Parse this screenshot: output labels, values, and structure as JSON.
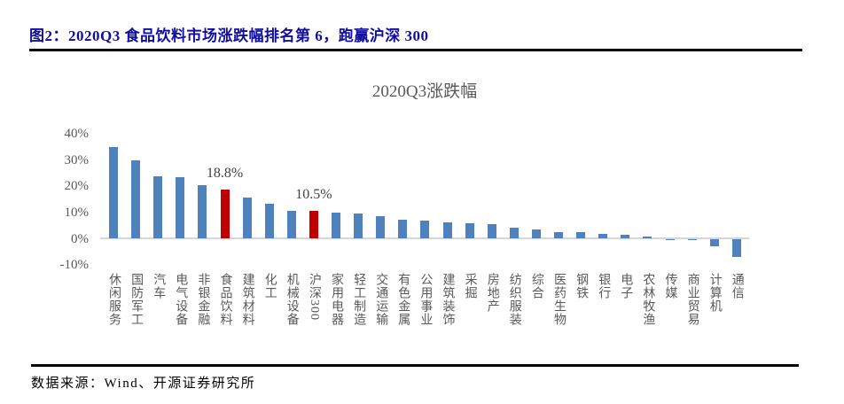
{
  "figure": {
    "caption": "图2：2020Q3 食品饮料市场涨跌幅排名第 6，跑赢沪深 300",
    "caption_color": "#100DA0",
    "source": "数据来源：Wind、开源证券研究所"
  },
  "chart_data": {
    "type": "bar",
    "title": "2020Q3涨跌幅",
    "categories": [
      "休闲服务",
      "国防军工",
      "汽车",
      "电气设备",
      "非银金融",
      "食品饮料",
      "建筑材料",
      "化工",
      "机械设备",
      "沪深300",
      "家用电器",
      "轻工制造",
      "交通运输",
      "有色金属",
      "公用事业",
      "建筑装饰",
      "采掘",
      "房地产",
      "纺织服装",
      "综合",
      "医药生物",
      "钢铁",
      "银行",
      "电子",
      "农林牧渔",
      "传媒",
      "商业贸易",
      "计算机",
      "通信"
    ],
    "values": [
      35.0,
      30.0,
      24.0,
      23.5,
      20.5,
      18.8,
      15.7,
      13.3,
      10.8,
      10.5,
      10.0,
      9.6,
      8.7,
      7.1,
      7.0,
      6.4,
      6.0,
      5.5,
      4.2,
      3.4,
      2.6,
      2.4,
      1.9,
      1.6,
      0.8,
      -0.4,
      -0.5,
      -3.0,
      -7.0
    ],
    "bar_color": "#4F81BD",
    "highlight": {
      "indices": [
        5,
        9
      ],
      "color": "#C00000"
    },
    "annotations": [
      {
        "bar_index": 5,
        "text": "18.8%"
      },
      {
        "bar_index": 9,
        "text": "10.5%"
      }
    ],
    "y_ticks": [
      "40%",
      "30%",
      "20%",
      "10%",
      "0%",
      "-10%"
    ],
    "y_tick_values": [
      40,
      30,
      20,
      10,
      0,
      -10
    ],
    "ylim": [
      -10,
      40
    ],
    "xlabel": "",
    "ylabel": "",
    "grid": false,
    "legend": false
  }
}
